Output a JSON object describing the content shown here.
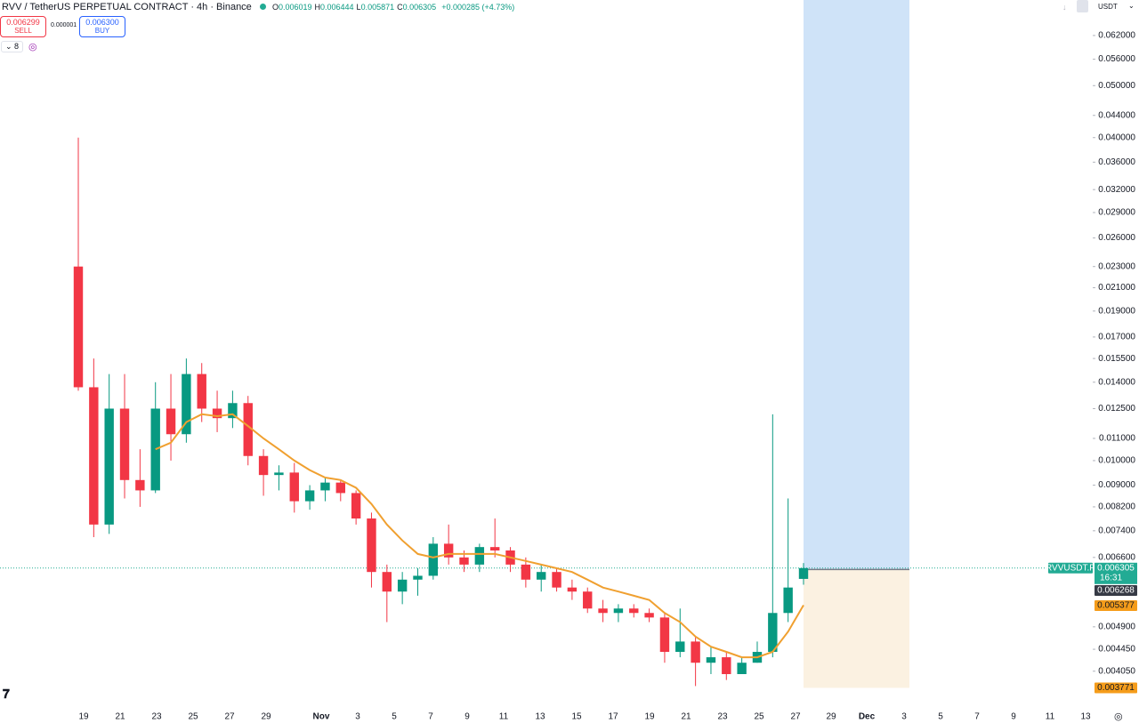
{
  "header": {
    "symbol": "RVV / TetherUS PERPETUAL CONTRACT · 4h · Binance",
    "ohlc": [
      {
        "key": "O",
        "value": "0.006019"
      },
      {
        "key": "H",
        "value": "0.006444"
      },
      {
        "key": "L",
        "value": "0.005871"
      },
      {
        "key": "C",
        "value": "0.006305"
      }
    ],
    "change": "+0.000285 (+4.73%)",
    "sell": {
      "price": "0.006299",
      "label": "SELL"
    },
    "spread": "0.000001",
    "buy": {
      "price": "0.006300",
      "label": "BUY"
    },
    "indicators": "8",
    "currency": "USDT"
  },
  "chart_data": {
    "type": "candlestick",
    "log_scale": true,
    "ylim": [
      0.0035,
      0.0722
    ],
    "yticks": [
      {
        "value": 0.062,
        "label": "0.062000"
      },
      {
        "value": 0.056,
        "label": "0.056000"
      },
      {
        "value": 0.05,
        "label": "0.050000"
      },
      {
        "value": 0.044,
        "label": "0.044000"
      },
      {
        "value": 0.04,
        "label": "0.040000"
      },
      {
        "value": 0.036,
        "label": "0.036000"
      },
      {
        "value": 0.032,
        "label": "0.032000"
      },
      {
        "value": 0.029,
        "label": "0.029000"
      },
      {
        "value": 0.026,
        "label": "0.026000"
      },
      {
        "value": 0.023,
        "label": "0.023000"
      },
      {
        "value": 0.021,
        "label": "0.021000"
      },
      {
        "value": 0.019,
        "label": "0.019000"
      },
      {
        "value": 0.017,
        "label": "0.017000"
      },
      {
        "value": 0.0155,
        "label": "0.015500"
      },
      {
        "value": 0.014,
        "label": "0.014000"
      },
      {
        "value": 0.0125,
        "label": "0.012500"
      },
      {
        "value": 0.011,
        "label": "0.011000"
      },
      {
        "value": 0.01,
        "label": "0.010000"
      },
      {
        "value": 0.009,
        "label": "0.009000"
      },
      {
        "value": 0.0082,
        "label": "0.008200"
      },
      {
        "value": 0.0074,
        "label": "0.007400"
      },
      {
        "value": 0.0066,
        "label": "0.006600"
      },
      {
        "value": 0.0049,
        "label": "0.004900"
      },
      {
        "value": 0.00445,
        "label": "0.004450"
      },
      {
        "value": 0.00405,
        "label": "0.004050"
      }
    ],
    "xticks": [
      "19",
      "21",
      "23",
      "25",
      "27",
      "29",
      "Nov",
      "3",
      "5",
      "7",
      "9",
      "11",
      "13",
      "15",
      "17",
      "19",
      "21",
      "23",
      "25",
      "27",
      "29",
      "Dec",
      "3",
      "5",
      "7",
      "9",
      "11",
      "13"
    ],
    "up_color": "#089981",
    "down_color": "#f23645",
    "open": [
      0.023,
      0.0137,
      0.0076,
      0.0125,
      0.0092,
      0.0088,
      0.0125,
      0.0112,
      0.0145,
      0.0125,
      0.012,
      0.0128,
      0.0102,
      0.0094,
      0.0095,
      0.0084,
      0.0088,
      0.0091,
      0.0087,
      0.0078,
      0.0062,
      0.0057,
      0.006,
      0.0061,
      0.007,
      0.0066,
      0.0064,
      0.0069,
      0.0068,
      0.0064,
      0.006,
      0.0062,
      0.0058,
      0.0057,
      0.0053,
      0.0052,
      0.0053,
      0.0052,
      0.0051,
      0.0044,
      0.0046,
      0.0042,
      0.0043,
      0.004,
      0.0042,
      0.0044,
      0.0052,
      0.006019
    ],
    "high": [
      0.04,
      0.0155,
      0.0145,
      0.0145,
      0.0105,
      0.014,
      0.0145,
      0.0155,
      0.0152,
      0.0135,
      0.0135,
      0.0132,
      0.0105,
      0.0098,
      0.0099,
      0.009,
      0.0093,
      0.0092,
      0.0088,
      0.008,
      0.0064,
      0.0062,
      0.0063,
      0.0072,
      0.0076,
      0.0068,
      0.007,
      0.0078,
      0.0069,
      0.0066,
      0.0064,
      0.0063,
      0.006,
      0.0058,
      0.0055,
      0.0054,
      0.0054,
      0.0053,
      0.0052,
      0.0053,
      0.0047,
      0.0045,
      0.0044,
      0.0043,
      0.0046,
      0.0122,
      0.0085,
      0.006444
    ],
    "low": [
      0.0135,
      0.0072,
      0.0073,
      0.0085,
      0.0082,
      0.0087,
      0.01,
      0.0108,
      0.0118,
      0.0113,
      0.0115,
      0.0098,
      0.0086,
      0.0088,
      0.008,
      0.0081,
      0.0084,
      0.0084,
      0.0076,
      0.0058,
      0.005,
      0.0054,
      0.0056,
      0.006,
      0.0064,
      0.0062,
      0.0062,
      0.0066,
      0.0062,
      0.0058,
      0.0057,
      0.0057,
      0.0055,
      0.0052,
      0.005,
      0.005,
      0.0051,
      0.005,
      0.0042,
      0.0043,
      0.0038,
      0.004,
      0.0039,
      0.004,
      0.0042,
      0.0043,
      0.005,
      0.005871
    ],
    "close": [
      0.0137,
      0.0076,
      0.0125,
      0.0092,
      0.0088,
      0.0125,
      0.0112,
      0.0145,
      0.0125,
      0.012,
      0.0128,
      0.0102,
      0.0094,
      0.0095,
      0.0084,
      0.0088,
      0.0091,
      0.0087,
      0.0078,
      0.0062,
      0.0057,
      0.006,
      0.0061,
      0.007,
      0.0066,
      0.0064,
      0.0069,
      0.0068,
      0.0064,
      0.006,
      0.0062,
      0.0058,
      0.0057,
      0.0053,
      0.0052,
      0.0053,
      0.0052,
      0.0051,
      0.0044,
      0.0046,
      0.0042,
      0.0043,
      0.004,
      0.0042,
      0.0044,
      0.0052,
      0.0058,
      0.006305
    ],
    "ma": {
      "color": "#f0a030",
      "values": [
        null,
        null,
        null,
        null,
        null,
        0.0105,
        0.0108,
        0.0118,
        0.0122,
        0.0121,
        0.0122,
        0.0116,
        0.011,
        0.0105,
        0.01,
        0.0096,
        0.0093,
        0.0092,
        0.0089,
        0.0083,
        0.0076,
        0.0071,
        0.0067,
        0.0066,
        0.0067,
        0.0067,
        0.0067,
        0.0067,
        0.0066,
        0.0065,
        0.0064,
        0.0063,
        0.0062,
        0.006,
        0.0058,
        0.0057,
        0.0056,
        0.0055,
        0.0052,
        0.005,
        0.0047,
        0.0045,
        0.0044,
        0.0043,
        0.0043,
        0.0044,
        0.0048,
        0.005377
      ]
    },
    "position": {
      "entry": 0.006268,
      "stop": 0.003771,
      "profit_color": "#cfe3f8",
      "loss_color": "#fbf1e1"
    },
    "price_labels": {
      "symbol": "RVVUSDT.P",
      "last": 0.006305,
      "last_label": "0.006305",
      "countdown": "16:31",
      "entry_label": "0.006268",
      "ma_label": "0.005377",
      "stop_label": "0.003771"
    }
  }
}
